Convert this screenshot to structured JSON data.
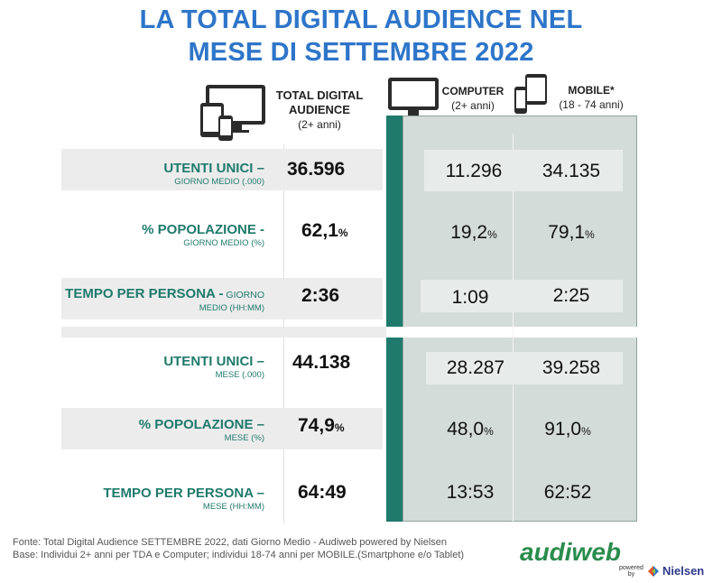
{
  "title": {
    "line1": "LA TOTAL DIGITAL AUDIENCE NEL",
    "line2": "MESE DI SETTEMBRE 2022"
  },
  "headers": {
    "total": {
      "line1": "TOTAL DIGITAL",
      "line2": "AUDIENCE",
      "sub": "(2+ anni)"
    },
    "computer": {
      "label": "COMPUTER",
      "sub": "(2+ anni)"
    },
    "mobile": {
      "label": "MOBILE*",
      "sub": "(18 - 74 anni)"
    }
  },
  "rows": [
    {
      "label": "UTENTI UNICI –",
      "sub": "GIORNO MEDIO (.000)",
      "total": "36.596",
      "computer": "11.296",
      "mobile": "34.135"
    },
    {
      "label": "% POPOLAZIONE -",
      "sub": "GIORNO MEDIO (%)",
      "total": "62,1",
      "total_pct": "%",
      "computer": "19,2",
      "computer_pct": "%",
      "mobile": "79,1",
      "mobile_pct": "%"
    },
    {
      "label": "TEMPO PER PERSONA -",
      "label_inline": " GIORNO",
      "sub": "MEDIO (HH:MM)",
      "total": "2:36",
      "computer": "1:09",
      "mobile": "2:25"
    },
    {
      "label": "UTENTI UNICI –",
      "sub": "MESE (.000)",
      "total": "44.138",
      "computer": "28.287",
      "mobile": "39.258"
    },
    {
      "label": "% POPOLAZIONE –",
      "sub": "MESE (%)",
      "total": "74,9",
      "total_pct": "%",
      "computer": "48,0",
      "computer_pct": "%",
      "mobile": "91,0",
      "mobile_pct": "%"
    },
    {
      "label": "TEMPO PER PERSONA –",
      "sub": "MESE (HH:MM)",
      "total": "64:49",
      "computer": "13:53",
      "mobile": "62:52"
    }
  ],
  "footer": {
    "line1": "Fonte: Total Digital Audience SETTEMBRE 2022, dati Giorno Medio - Audiweb powered by Nielsen",
    "line2": "Base:  Individui 2+ anni per TDA e Computer; individui 18-74 anni per MOBILE.(Smartphone e/o Tablet)"
  },
  "logo": {
    "brand": "audiweb",
    "powered": "powered",
    "by": "by",
    "partner": "Nielsen"
  },
  "icons": [
    "multi-device-icon",
    "monitor-icon",
    "smartphone-icon"
  ],
  "colors": {
    "title": "#2e75c9",
    "labels": "#1f7a6c",
    "panel": "#d3dcd8",
    "bar": "#1f7a6c"
  }
}
